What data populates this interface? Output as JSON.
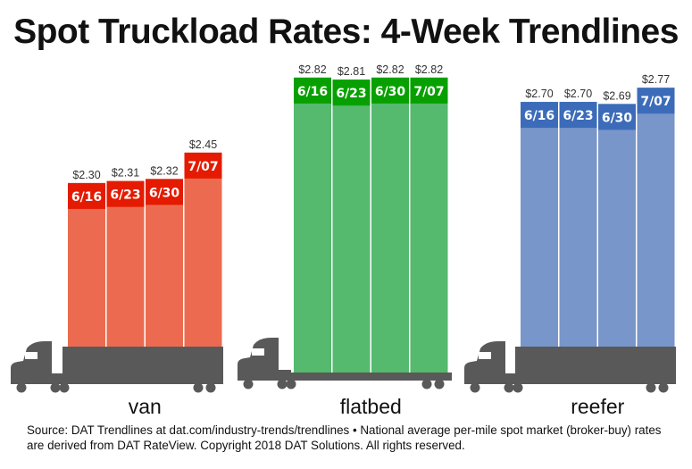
{
  "title": "Spot Truckload Rates: 4-Week Trendlines",
  "source": "Source: DAT Trendlines at dat.com/industry-trends/trendlines • National average per-mile spot market (broker-buy) rates are derived from DAT RateView. Copyright 2018 DAT Solutions. All rights reserved.",
  "chart_data": {
    "type": "bar",
    "title": "Spot Truckload Rates: 4-Week Trendlines",
    "groups": [
      {
        "name": "van",
        "truck": "dry-van-truck",
        "bar_color": "#ec6b50",
        "header_color": "#e41b00",
        "weeks": [
          "6/16",
          "6/23",
          "6/30",
          "7/07"
        ],
        "values": [
          2.3,
          2.31,
          2.32,
          2.45
        ],
        "labels": [
          "$2.30",
          "$2.31",
          "$2.32",
          "$2.45"
        ]
      },
      {
        "name": "flatbed",
        "truck": "flatbed-truck",
        "bar_color": "#55b96e",
        "header_color": "#08a000",
        "weeks": [
          "6/16",
          "6/23",
          "6/30",
          "7/07"
        ],
        "values": [
          2.82,
          2.81,
          2.82,
          2.82
        ],
        "labels": [
          "$2.82",
          "$2.81",
          "$2.82",
          "$2.82"
        ]
      },
      {
        "name": "reefer",
        "truck": "reefer-truck",
        "bar_color": "#7896c9",
        "header_color": "#3c6cb9",
        "weeks": [
          "6/16",
          "6/23",
          "6/30",
          "7/07"
        ],
        "values": [
          2.7,
          2.7,
          2.69,
          2.77
        ],
        "labels": [
          "$2.70",
          "$2.70",
          "$2.69",
          "$2.77"
        ]
      }
    ],
    "truck_color": "#595959"
  }
}
